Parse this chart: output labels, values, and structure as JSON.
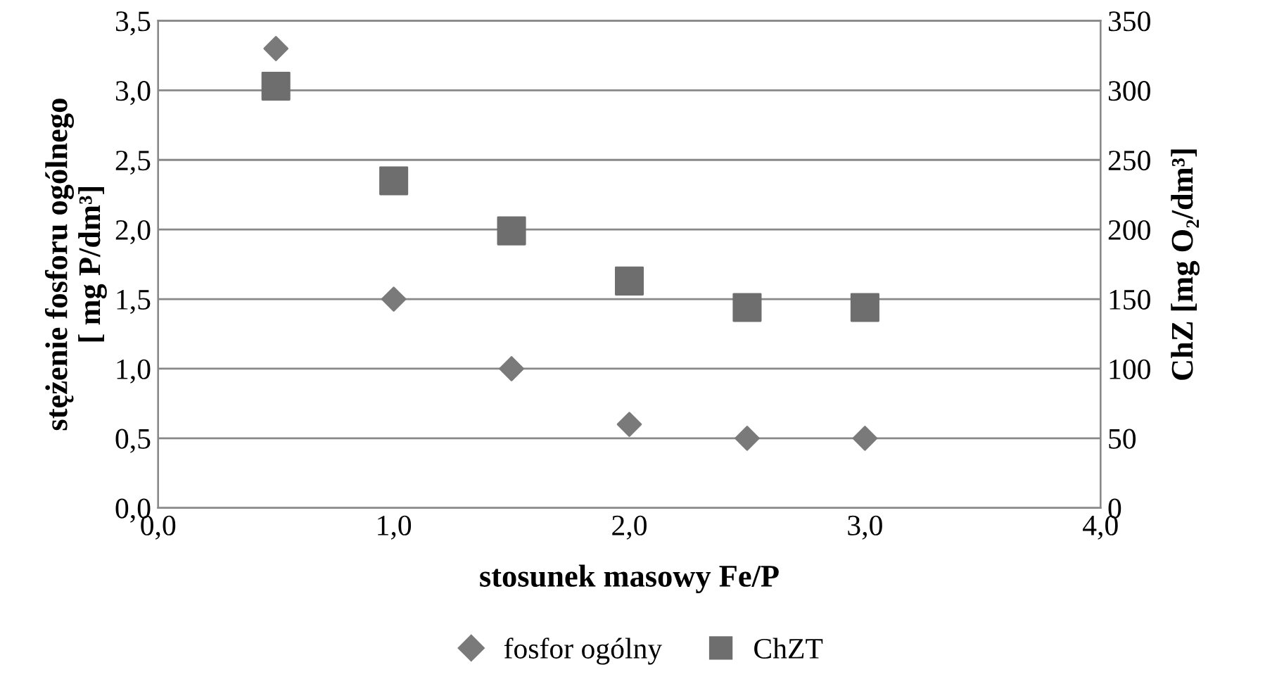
{
  "chart_data": {
    "type": "scatter",
    "xlabel": "stosunek masowy Fe/P",
    "ylabel": "stężenie fosforu ogólnego\n[ mg P/dm³]",
    "y2label": "ChZ [mg O₂/dm³]",
    "series": [
      {
        "name": "fosfor ogólny",
        "color": "#7a7a7a",
        "marker": "diamond",
        "x": [
          0.5,
          1.0,
          1.5,
          2.0,
          2.5,
          3.0
        ],
        "values": [
          3.3,
          1.5,
          1.0,
          0.6,
          0.5,
          0.5
        ]
      },
      {
        "name": "ChZT",
        "color": "#6e6e6e",
        "marker": "square",
        "axis": "y2",
        "x": [
          0.5,
          1.0,
          1.5,
          2.0,
          2.5,
          3.0
        ],
        "values": [
          303,
          235,
          199,
          163,
          144,
          144
        ]
      }
    ],
    "xlim": [
      0,
      4
    ],
    "xticks": [
      {
        "value": 0,
        "label": "0,0"
      },
      {
        "value": 1,
        "label": "1,0"
      },
      {
        "value": 2,
        "label": "2,0"
      },
      {
        "value": 3,
        "label": "3,0"
      },
      {
        "value": 4,
        "label": "4,0"
      }
    ],
    "ylim": [
      0,
      3.5
    ],
    "yticks": [
      {
        "value": 0,
        "label": "0,0"
      },
      {
        "value": 0.5,
        "label": "0,5"
      },
      {
        "value": 1.0,
        "label": "1,0"
      },
      {
        "value": 1.5,
        "label": "1,5"
      },
      {
        "value": 2.0,
        "label": "2,0"
      },
      {
        "value": 2.5,
        "label": "2,5"
      },
      {
        "value": 3.0,
        "label": "3,0"
      },
      {
        "value": 3.5,
        "label": "3,5"
      }
    ],
    "y2lim": [
      0,
      350
    ],
    "y2ticks": [
      0,
      50,
      100,
      150,
      200,
      250,
      300,
      350
    ],
    "grid": "y",
    "legend": "bottom"
  }
}
